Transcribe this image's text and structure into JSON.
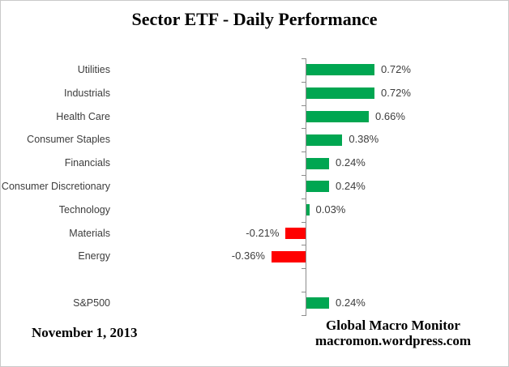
{
  "title": "Sector ETF - Daily Performance",
  "footer": {
    "date": "November 1, 2013",
    "source_line1": "Global Macro Monitor",
    "source_line2": "macromon.wordpress.com"
  },
  "colors": {
    "positive_bar": "#00a651",
    "negative_bar": "#ff0000",
    "axis": "#8c8c8c",
    "label_text": "#3d3d3d",
    "frame_border": "#c9c9c9"
  },
  "chart_data": {
    "type": "bar",
    "orientation": "horizontal",
    "title": "Sector ETF - Daily Performance",
    "xlabel": "",
    "ylabel": "",
    "grid": false,
    "legend": false,
    "unit": "%",
    "categories": [
      "Utilities",
      "Industrials",
      "Health Care",
      "Consumer Staples",
      "Financials",
      "Consumer Discretionary",
      "Technology",
      "Materials",
      "Energy",
      "",
      "S&P500"
    ],
    "values": [
      0.72,
      0.72,
      0.66,
      0.38,
      0.24,
      0.24,
      0.03,
      -0.21,
      -0.36,
      null,
      0.24
    ],
    "value_labels": [
      "0.72%",
      "0.72%",
      "0.66%",
      "0.38%",
      "0.24%",
      "0.24%",
      "0.03%",
      "-0.21%",
      "-0.36%",
      "",
      "0.24%"
    ]
  }
}
